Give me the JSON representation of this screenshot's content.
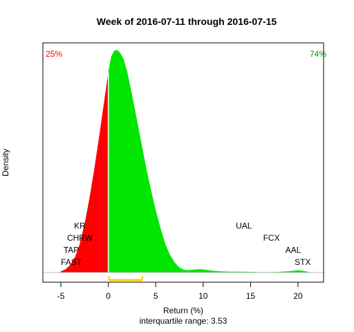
{
  "chart_data": {
    "type": "area",
    "title": "Week of 2016-07-11 through 2016-07-15",
    "xlabel": "Return (%)",
    "ylabel": "Density",
    "subtitle": "interquartile range: 3.53",
    "xlim": [
      -6.9,
      22.7
    ],
    "ylim": [
      0,
      1
    ],
    "xticks": [
      -5,
      0,
      5,
      10,
      15,
      20
    ],
    "xtick_labels": [
      "-5",
      "0",
      "5",
      "10",
      "15",
      "20"
    ],
    "split_at": 0,
    "interquartile_range": [
      0.07,
      3.6
    ],
    "negative_share": {
      "label": "25%",
      "color": "#ff0000"
    },
    "positive_share": {
      "label": "74%",
      "color": "#009900"
    },
    "colors": {
      "negative": "#ff0000",
      "positive": "#00e600",
      "iqr": "#ffcc00",
      "baseline": "#bbbbbb"
    },
    "density": [
      {
        "x": -5.2,
        "y": 0.0
      },
      {
        "x": -5.0,
        "y": 0.005
      },
      {
        "x": -4.5,
        "y": 0.015
      },
      {
        "x": -4.0,
        "y": 0.035
      },
      {
        "x": -3.5,
        "y": 0.07
      },
      {
        "x": -3.0,
        "y": 0.13
      },
      {
        "x": -2.5,
        "y": 0.22
      },
      {
        "x": -2.0,
        "y": 0.33
      },
      {
        "x": -1.5,
        "y": 0.46
      },
      {
        "x": -1.0,
        "y": 0.6
      },
      {
        "x": -0.5,
        "y": 0.75
      },
      {
        "x": 0.0,
        "y": 0.9
      },
      {
        "x": 0.3,
        "y": 0.97
      },
      {
        "x": 0.6,
        "y": 0.995
      },
      {
        "x": 0.9,
        "y": 1.0
      },
      {
        "x": 1.2,
        "y": 0.99
      },
      {
        "x": 1.6,
        "y": 0.96
      },
      {
        "x": 2.0,
        "y": 0.9
      },
      {
        "x": 2.5,
        "y": 0.8
      },
      {
        "x": 3.0,
        "y": 0.69
      },
      {
        "x": 3.5,
        "y": 0.58
      },
      {
        "x": 4.0,
        "y": 0.47
      },
      {
        "x": 4.5,
        "y": 0.37
      },
      {
        "x": 5.0,
        "y": 0.28
      },
      {
        "x": 5.5,
        "y": 0.2
      },
      {
        "x": 6.0,
        "y": 0.13
      },
      {
        "x": 6.5,
        "y": 0.08
      },
      {
        "x": 7.0,
        "y": 0.045
      },
      {
        "x": 7.5,
        "y": 0.022
      },
      {
        "x": 8.0,
        "y": 0.012
      },
      {
        "x": 8.5,
        "y": 0.011
      },
      {
        "x": 9.0,
        "y": 0.013
      },
      {
        "x": 9.5,
        "y": 0.015
      },
      {
        "x": 10.0,
        "y": 0.014
      },
      {
        "x": 10.5,
        "y": 0.011
      },
      {
        "x": 11.0,
        "y": 0.008
      },
      {
        "x": 12.0,
        "y": 0.005
      },
      {
        "x": 13.0,
        "y": 0.004
      },
      {
        "x": 14.0,
        "y": 0.004
      },
      {
        "x": 15.0,
        "y": 0.003
      },
      {
        "x": 16.0,
        "y": 0.002
      },
      {
        "x": 17.0,
        "y": 0.002
      },
      {
        "x": 18.0,
        "y": 0.003
      },
      {
        "x": 19.0,
        "y": 0.006
      },
      {
        "x": 20.0,
        "y": 0.01
      },
      {
        "x": 20.5,
        "y": 0.008
      },
      {
        "x": 21.0,
        "y": 0.004
      },
      {
        "x": 21.5,
        "y": 0.0
      }
    ],
    "annotations": [
      {
        "text": "KR",
        "x": -3.0,
        "level": 4
      },
      {
        "text": "CHRW",
        "x": -3.0,
        "level": 3
      },
      {
        "text": "TAP",
        "x": -3.9,
        "level": 2
      },
      {
        "text": "FAST",
        "x": -3.9,
        "level": 1
      },
      {
        "text": "UAL",
        "x": 14.3,
        "level": 4
      },
      {
        "text": "FCX",
        "x": 17.2,
        "level": 3
      },
      {
        "text": "AAL",
        "x": 19.5,
        "level": 2
      },
      {
        "text": "STX",
        "x": 20.5,
        "level": 1
      }
    ]
  }
}
